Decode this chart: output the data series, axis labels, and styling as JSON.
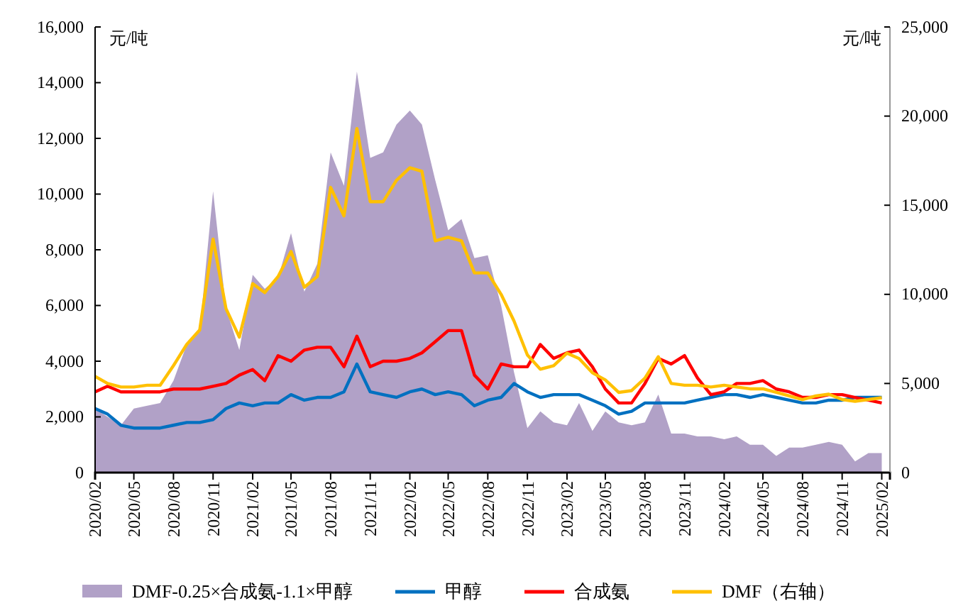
{
  "chart_data": {
    "type": "line",
    "ylabel": "元/吨",
    "y2label": "元/吨",
    "x": [
      "2020-02",
      "2020-03",
      "2020-04",
      "2020-05",
      "2020-06",
      "2020-07",
      "2020-08",
      "2020-09",
      "2020-10",
      "2020-11",
      "2020-12",
      "2021-01",
      "2021-02",
      "2021-03",
      "2021-04",
      "2021-05",
      "2021-06",
      "2021-07",
      "2021-08",
      "2021-09",
      "2021-10",
      "2021-11",
      "2021-12",
      "2022-01",
      "2022-02",
      "2022-03",
      "2022-04",
      "2022-05",
      "2022-06",
      "2022-07",
      "2022-08",
      "2022-09",
      "2022-10",
      "2022-11",
      "2022-12",
      "2023-01",
      "2023-02",
      "2023-03",
      "2023-04",
      "2023-05",
      "2023-06",
      "2023-07",
      "2023-08",
      "2023-09",
      "2023-10",
      "2023-11",
      "2023-12",
      "2024-01",
      "2024-02",
      "2024-03",
      "2024-04",
      "2024-05",
      "2024-06",
      "2024-07",
      "2024-08",
      "2024-09",
      "2024-10",
      "2024-11",
      "2024-12",
      "2025-01",
      "2025-02"
    ],
    "series": [
      {
        "name": "DMF-0.25×合成氨-1.1×甲醇",
        "type": "area",
        "color": "#b1a1c7",
        "values": [
          2300,
          2000,
          1700,
          2300,
          2400,
          2500,
          3300,
          4600,
          5100,
          10100,
          5900,
          4400,
          7100,
          6600,
          7000,
          8600,
          6500,
          7500,
          11500,
          10300,
          14400,
          11300,
          11500,
          12500,
          13000,
          12500,
          10500,
          8700,
          9100,
          7700,
          7800,
          6000,
          3600,
          1600,
          2200,
          1800,
          1700,
          2500,
          1500,
          2200,
          1800,
          1700,
          1800,
          2800,
          1400,
          1400,
          1300,
          1300,
          1200,
          1300,
          1000,
          1000,
          600,
          900,
          900,
          1000,
          1100,
          1000,
          400,
          700,
          700
        ]
      },
      {
        "name": "甲醇",
        "color": "#0070c0",
        "values": [
          2300,
          2100,
          1700,
          1600,
          1600,
          1600,
          1700,
          1800,
          1800,
          1900,
          2300,
          2500,
          2400,
          2500,
          2500,
          2800,
          2600,
          2700,
          2700,
          2900,
          3900,
          2900,
          2800,
          2700,
          2900,
          3000,
          2800,
          2900,
          2800,
          2400,
          2600,
          2700,
          3200,
          2900,
          2700,
          2800,
          2800,
          2800,
          2600,
          2400,
          2100,
          2200,
          2500,
          2500,
          2500,
          2500,
          2600,
          2700,
          2800,
          2800,
          2700,
          2800,
          2700,
          2600,
          2500,
          2500,
          2600,
          2600,
          2700,
          2700,
          2700
        ]
      },
      {
        "name": "合成氨",
        "color": "#ff0000",
        "values": [
          2900,
          3100,
          2900,
          2900,
          2900,
          2900,
          3000,
          3000,
          3000,
          3100,
          3200,
          3500,
          3700,
          3300,
          4200,
          4000,
          4400,
          4500,
          4500,
          3800,
          4900,
          3800,
          4000,
          4000,
          4100,
          4300,
          4700,
          5100,
          5100,
          3500,
          3000,
          3900,
          3800,
          3800,
          4600,
          4100,
          4300,
          4400,
          3800,
          3000,
          2500,
          2500,
          3200,
          4100,
          3900,
          4200,
          3400,
          2800,
          2900,
          3200,
          3200,
          3300,
          3000,
          2900,
          2700,
          2700,
          2800,
          2800,
          2700,
          2600,
          2500
        ]
      },
      {
        "name": "DMF（右轴）",
        "axis": "y2",
        "color": "#ffc000",
        "values": [
          5400,
          5000,
          4800,
          4800,
          4900,
          4900,
          6000,
          7200,
          8000,
          13100,
          9200,
          7600,
          10600,
          10100,
          11000,
          12400,
          10400,
          11000,
          16000,
          14400,
          19300,
          15200,
          15200,
          16400,
          17100,
          16900,
          13000,
          13200,
          13000,
          11200,
          11200,
          10000,
          8500,
          6600,
          5800,
          6000,
          6700,
          6400,
          5600,
          5200,
          4500,
          4600,
          5300,
          6500,
          5000,
          4900,
          4900,
          4800,
          4900,
          4800,
          4700,
          4700,
          4500,
          4300,
          4100,
          4300,
          4400,
          4100,
          4000,
          4100,
          4200
        ]
      }
    ],
    "xlim": [
      "2020-02",
      "2025-02-20"
    ],
    "xticks": [
      {
        "value": "2020-02",
        "label": "2020/02"
      },
      {
        "value": "2020-05",
        "label": "2020/05"
      },
      {
        "value": "2020-08",
        "label": "2020/08"
      },
      {
        "value": "2020-11",
        "label": "2020/11"
      },
      {
        "value": "2021-02",
        "label": "2021/02"
      },
      {
        "value": "2021-05",
        "label": "2021/05"
      },
      {
        "value": "2021-08",
        "label": "2021/08"
      },
      {
        "value": "2021-11",
        "label": "2021/11"
      },
      {
        "value": "2022-02",
        "label": "2022/02"
      },
      {
        "value": "2022-05",
        "label": "2022/05"
      },
      {
        "value": "2022-08",
        "label": "2022/08"
      },
      {
        "value": "2022-11",
        "label": "2022/11"
      },
      {
        "value": "2023-02",
        "label": "2023/02"
      },
      {
        "value": "2023-05",
        "label": "2023/05"
      },
      {
        "value": "2023-08",
        "label": "2023/08"
      },
      {
        "value": "2023-11",
        "label": "2023/11"
      },
      {
        "value": "2024-02",
        "label": "2024/02"
      },
      {
        "value": "2024-05",
        "label": "2024/05"
      },
      {
        "value": "2024-08",
        "label": "2024/08"
      },
      {
        "value": "2024-11",
        "label": "2024/11"
      },
      {
        "value": "2025-02",
        "label": "2025/02"
      }
    ],
    "ylim": [
      0,
      16000
    ],
    "yticks": [
      0,
      {
        "value": 2000,
        "label": "2,000"
      },
      {
        "value": 4000,
        "label": "4,000"
      },
      {
        "value": 6000,
        "label": "6,000"
      },
      {
        "value": 8000,
        "label": "8,000"
      },
      {
        "value": 10000,
        "label": "10,000"
      },
      {
        "value": 12000,
        "label": "12,000"
      },
      {
        "value": 14000,
        "label": "14,000"
      },
      {
        "value": 16000,
        "label": "16,000"
      }
    ],
    "y2lim": [
      0,
      25000
    ],
    "y2ticks": [
      0,
      {
        "value": 5000,
        "label": "5,000"
      },
      {
        "value": 10000,
        "label": "10,000"
      },
      {
        "value": 15000,
        "label": "15,000"
      },
      {
        "value": 20000,
        "label": "20,000"
      },
      {
        "value": 25000,
        "label": "25,000"
      }
    ],
    "grid": false,
    "legend": "bottom"
  }
}
